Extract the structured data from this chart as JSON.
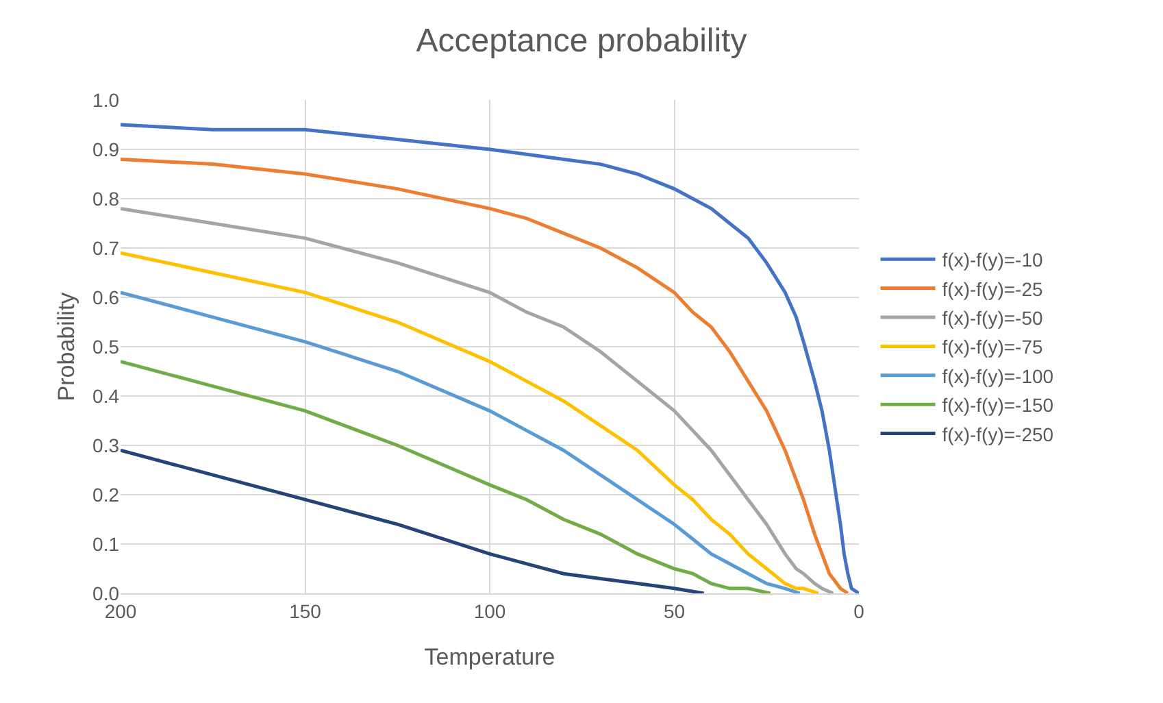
{
  "chart_data": {
    "type": "line",
    "title": "Acceptance probability",
    "xlabel": "Temperature",
    "ylabel": "Probability",
    "series": [
      {
        "name": "f(x)-f(y)=-10",
        "color": "#4472c4",
        "x": [
          200,
          175,
          150,
          125,
          100,
          90,
          80,
          70,
          60,
          50,
          45,
          40,
          35,
          30,
          25,
          20,
          17,
          15,
          12,
          10,
          8,
          6,
          5,
          4,
          3,
          2,
          0
        ],
        "values": [
          0.95,
          0.94,
          0.94,
          0.92,
          0.9,
          0.89,
          0.88,
          0.87,
          0.85,
          0.82,
          0.8,
          0.78,
          0.75,
          0.72,
          0.67,
          0.61,
          0.56,
          0.51,
          0.43,
          0.37,
          0.29,
          0.19,
          0.14,
          0.08,
          0.04,
          0.01,
          0.0
        ]
      },
      {
        "name": "f(x)-f(y)=-25",
        "color": "#ed7d31",
        "x": [
          200,
          175,
          150,
          125,
          100,
          90,
          80,
          70,
          60,
          50,
          45,
          40,
          35,
          30,
          25,
          20,
          17,
          15,
          12,
          10,
          8,
          6,
          5,
          3
        ],
        "values": [
          0.88,
          0.87,
          0.85,
          0.82,
          0.78,
          0.76,
          0.73,
          0.7,
          0.66,
          0.61,
          0.57,
          0.54,
          0.49,
          0.43,
          0.37,
          0.29,
          0.23,
          0.19,
          0.12,
          0.08,
          0.04,
          0.02,
          0.01,
          0.0
        ]
      },
      {
        "name": "f(x)-f(y)=-50",
        "color": "#a5a5a5",
        "x": [
          200,
          175,
          150,
          125,
          100,
          90,
          80,
          70,
          60,
          50,
          45,
          40,
          35,
          30,
          25,
          20,
          17,
          15,
          12,
          10,
          7
        ],
        "values": [
          0.78,
          0.75,
          0.72,
          0.67,
          0.61,
          0.57,
          0.54,
          0.49,
          0.43,
          0.37,
          0.33,
          0.29,
          0.24,
          0.19,
          0.14,
          0.08,
          0.05,
          0.04,
          0.02,
          0.01,
          0.0
        ]
      },
      {
        "name": "f(x)-f(y)=-75",
        "color": "#ffc000",
        "x": [
          200,
          175,
          150,
          125,
          100,
          90,
          80,
          70,
          60,
          50,
          45,
          40,
          35,
          30,
          25,
          20,
          17,
          15,
          11
        ],
        "values": [
          0.69,
          0.65,
          0.61,
          0.55,
          0.47,
          0.43,
          0.39,
          0.34,
          0.29,
          0.22,
          0.19,
          0.15,
          0.12,
          0.08,
          0.05,
          0.02,
          0.01,
          0.01,
          0.0
        ]
      },
      {
        "name": "f(x)-f(y)=-100",
        "color": "#5b9bd5",
        "x": [
          200,
          175,
          150,
          125,
          100,
          90,
          80,
          70,
          60,
          50,
          45,
          40,
          35,
          30,
          25,
          20,
          16
        ],
        "values": [
          0.61,
          0.56,
          0.51,
          0.45,
          0.37,
          0.33,
          0.29,
          0.24,
          0.19,
          0.14,
          0.11,
          0.08,
          0.06,
          0.04,
          0.02,
          0.01,
          0.0
        ]
      },
      {
        "name": "f(x)-f(y)=-150",
        "color": "#70ad47",
        "x": [
          200,
          175,
          150,
          125,
          100,
          90,
          80,
          70,
          60,
          50,
          45,
          40,
          35,
          30,
          24
        ],
        "values": [
          0.47,
          0.42,
          0.37,
          0.3,
          0.22,
          0.19,
          0.15,
          0.12,
          0.08,
          0.05,
          0.04,
          0.02,
          0.01,
          0.01,
          0.0
        ]
      },
      {
        "name": "f(x)-f(y)=-250",
        "color": "#264478",
        "x": [
          200,
          175,
          150,
          125,
          100,
          90,
          80,
          70,
          60,
          50,
          42
        ],
        "values": [
          0.29,
          0.24,
          0.19,
          0.14,
          0.08,
          0.06,
          0.04,
          0.03,
          0.02,
          0.01,
          0.0
        ]
      }
    ],
    "xlim": [
      200,
      0
    ],
    "xticks": [
      200,
      150,
      100,
      50,
      0
    ],
    "ylim": [
      0,
      1
    ],
    "yticks": [
      {
        "value": 0,
        "label": "0.0"
      },
      {
        "value": 0.1,
        "label": "0.1"
      },
      {
        "value": 0.2,
        "label": "0.2"
      },
      {
        "value": 0.3,
        "label": "0.3"
      },
      {
        "value": 0.4,
        "label": "0.4"
      },
      {
        "value": 0.5,
        "label": "0.5"
      },
      {
        "value": 0.6,
        "label": "0.6"
      },
      {
        "value": 0.7,
        "label": "0.7"
      },
      {
        "value": 0.8,
        "label": "0.8"
      },
      {
        "value": 0.9,
        "label": "0.9"
      },
      {
        "value": 1,
        "label": "1.0"
      }
    ],
    "grid": true,
    "legend": "right",
    "marker": "none",
    "line_style": "solid"
  }
}
